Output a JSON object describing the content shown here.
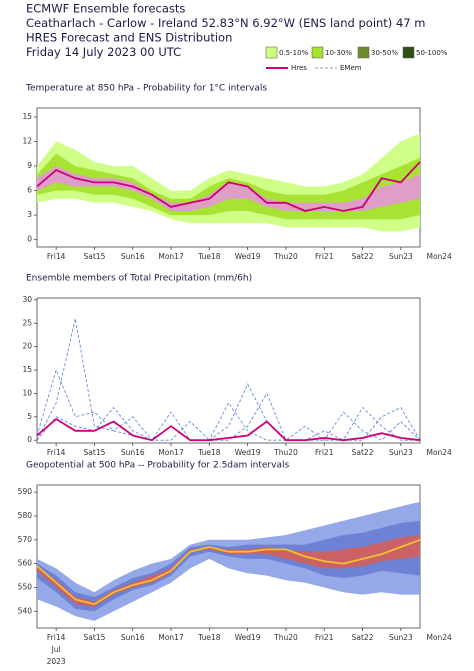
{
  "header": {
    "lines": [
      "ECMWF Ensemble forecasts",
      "Ceatharlach - Carlow - Ireland 52.83°N 6.92°W (ENS land point) 47 m",
      "HRES Forecast and ENS Distribution",
      "Friday 14 July 2023 00 UTC"
    ]
  },
  "legend": [
    {
      "name": "0.5-10%",
      "color": "#ccff80",
      "kind": "box"
    },
    {
      "name": "10-30%",
      "color": "#a5e22e",
      "kind": "box"
    },
    {
      "name": "30-50%",
      "color": "#6b8c2e",
      "kind": "box"
    },
    {
      "name": "50-100%",
      "color": "#2d5016",
      "kind": "box"
    },
    {
      "name": "Hres",
      "color": "#cc0077",
      "kind": "line"
    },
    {
      "name": "EMem",
      "color": "#999999",
      "kind": "dash"
    }
  ],
  "chart_data": [
    {
      "type": "line",
      "title": "Temperature at 850 hPa - Probability for 1°C intervals",
      "ylim": [
        -0.9,
        16.1
      ],
      "yticks": [
        0,
        3,
        6,
        9,
        12,
        15
      ],
      "x": [
        0,
        12,
        24,
        36,
        48,
        60,
        72,
        84,
        96,
        108,
        120,
        132,
        144,
        156,
        168,
        180,
        192,
        204,
        216,
        228,
        240
      ],
      "xticks": [
        {
          "value": 12,
          "label": "Fri14"
        },
        {
          "value": 36,
          "label": "Sat15"
        },
        {
          "value": 60,
          "label": "Sun16",
          "color": "#cc0000"
        },
        {
          "value": 84,
          "label": "Mon17"
        },
        {
          "value": 108,
          "label": "Tue18"
        },
        {
          "value": 132,
          "label": "Wed19"
        },
        {
          "value": 156,
          "label": "Thu20"
        },
        {
          "value": 180,
          "label": "Fri21"
        },
        {
          "value": 204,
          "label": "Sat22"
        },
        {
          "value": 228,
          "label": "Sun23",
          "color": "#cc0000"
        },
        {
          "value": 252,
          "label": "Mon24"
        }
      ],
      "series": [
        {
          "name": "0.5-10%",
          "color": "#ccff80",
          "low": [
            4.5,
            5,
            5,
            4.5,
            4.5,
            4,
            3.5,
            2.5,
            2,
            2,
            2,
            2,
            2,
            1.5,
            1.5,
            1.5,
            1.5,
            1.5,
            1,
            1,
            1.5
          ],
          "high": [
            9,
            12,
            11,
            9.5,
            9,
            9,
            7.5,
            6,
            6,
            7.5,
            8.5,
            8,
            7.5,
            7,
            6.5,
            6.5,
            7,
            8,
            10,
            12,
            13
          ]
        },
        {
          "name": "10-30%",
          "color": "#a5e22e",
          "low": [
            5.5,
            6,
            6,
            5.5,
            5.5,
            5,
            4,
            3,
            3,
            3,
            3.5,
            3.5,
            3,
            2.5,
            2.5,
            2.5,
            2.5,
            2.5,
            2.5,
            2.5,
            3
          ],
          "high": [
            8,
            10.5,
            9,
            8.5,
            8,
            7.5,
            6,
            5,
            5,
            6.5,
            7.5,
            7,
            6,
            5.5,
            5.5,
            5.5,
            6,
            7,
            8,
            9,
            10
          ]
        },
        {
          "name": "30-50%",
          "color": "#e09ad0",
          "low": [
            6,
            7,
            6.5,
            6.5,
            6.5,
            6,
            5,
            3.5,
            3.5,
            4,
            5,
            5,
            4,
            3.5,
            3.5,
            3.5,
            3.5,
            3.5,
            4,
            4.5,
            5
          ],
          "high": [
            7.5,
            9,
            8,
            7.5,
            7.5,
            7,
            5.5,
            4.5,
            4.5,
            5.5,
            7,
            6.5,
            5,
            4.5,
            4.5,
            4.5,
            4.5,
            5,
            6.5,
            7,
            8
          ]
        },
        {
          "name": "Hres",
          "color": "#cc0077",
          "values": [
            6.5,
            8.5,
            7.5,
            7,
            7,
            6.5,
            5.5,
            4,
            4.5,
            5,
            7,
            6.5,
            4.5,
            4.5,
            3.5,
            4,
            3.5,
            4,
            7.5,
            7,
            9.5
          ]
        }
      ]
    },
    {
      "type": "line",
      "title": "Ensemble members of Total Precipitation (mm/6h)",
      "ylim": [
        -0.6,
        30.4
      ],
      "yticks": [
        0,
        5,
        10,
        15,
        20,
        25,
        30
      ],
      "x": [
        0,
        12,
        24,
        36,
        48,
        60,
        72,
        84,
        96,
        108,
        120,
        132,
        144,
        156,
        168,
        180,
        192,
        204,
        216,
        228,
        240
      ],
      "xticks": [
        {
          "value": 12,
          "label": "Fri14"
        },
        {
          "value": 36,
          "label": "Sat15"
        },
        {
          "value": 60,
          "label": "Sun16",
          "color": "#cc0000"
        },
        {
          "value": 84,
          "label": "Mon17"
        },
        {
          "value": 108,
          "label": "Tue18"
        },
        {
          "value": 132,
          "label": "Wed19"
        },
        {
          "value": 156,
          "label": "Thu20"
        },
        {
          "value": 180,
          "label": "Fri21"
        },
        {
          "value": 204,
          "label": "Sat22"
        },
        {
          "value": 228,
          "label": "Sun23",
          "color": "#cc0000"
        },
        {
          "value": 252,
          "label": "Mon24"
        }
      ],
      "series": [
        {
          "name": "EMem",
          "color": "#4f7fd6",
          "members": [
            [
              0,
              8,
              26,
              3,
              2,
              5,
              0,
              0,
              4,
              0,
              0,
              3,
              10,
              0,
              0,
              0,
              0,
              7,
              3,
              0,
              0
            ],
            [
              1,
              15,
              5,
              6,
              2,
              1,
              0,
              3,
              0,
              0,
              8,
              2,
              0,
              0,
              0,
              2,
              0,
              0,
              5,
              7,
              0
            ],
            [
              0,
              5,
              3,
              2,
              7,
              2,
              0,
              6,
              0,
              0,
              3,
              12,
              4,
              0,
              3,
              0,
              6,
              2,
              0,
              4,
              0
            ]
          ]
        },
        {
          "name": "Hres",
          "color": "#cc0077",
          "values": [
            1,
            4.5,
            2,
            2,
            4,
            1,
            0,
            3,
            0,
            0,
            0.5,
            1,
            4,
            0,
            0,
            0.5,
            0,
            0.5,
            1.5,
            0.5,
            0
          ]
        }
      ]
    },
    {
      "type": "line",
      "title": "Geopotential at 500 hPa -- Probability for 2.5dam intervals",
      "ylim": [
        533,
        593
      ],
      "yticks": [
        540,
        550,
        560,
        570,
        580,
        590
      ],
      "x": [
        0,
        12,
        24,
        36,
        48,
        60,
        72,
        84,
        96,
        108,
        120,
        132,
        144,
        156,
        168,
        180,
        192,
        204,
        216,
        228,
        240
      ],
      "xticks": [
        {
          "value": 12,
          "label": "Fri14"
        },
        {
          "value": 36,
          "label": "Sat15"
        },
        {
          "value": 60,
          "label": "Sun16",
          "color": "#cc0000"
        },
        {
          "value": 84,
          "label": "Mon17"
        },
        {
          "value": 108,
          "label": "Tue18"
        },
        {
          "value": 132,
          "label": "Wed19"
        },
        {
          "value": 156,
          "label": "Thu20"
        },
        {
          "value": 180,
          "label": "Fri21"
        },
        {
          "value": 204,
          "label": "Sat22"
        },
        {
          "value": 228,
          "label": "Sun23",
          "color": "#cc0000"
        },
        {
          "value": 252,
          "label": "Mon24"
        }
      ],
      "date_labels": [
        "Jul",
        "2023"
      ],
      "series": [
        {
          "name": "0.5-10%",
          "color": "#8fa3e6",
          "low": [
            545,
            542,
            538,
            536,
            540,
            544,
            548,
            552,
            558,
            562,
            558,
            556,
            555,
            553,
            552,
            550,
            548,
            547,
            548,
            547,
            547
          ],
          "high": [
            562,
            558,
            552,
            548,
            553,
            557,
            560,
            562,
            568,
            570,
            570,
            570,
            571,
            572,
            574,
            576,
            578,
            580,
            582,
            584,
            586
          ]
        },
        {
          "name": "10-30%",
          "color": "#6a7fd4",
          "low": [
            554,
            548,
            541,
            540,
            545,
            549,
            551,
            555,
            563,
            565,
            563,
            562,
            562,
            560,
            558,
            555,
            554,
            555,
            557,
            556,
            555
          ],
          "high": [
            560,
            555,
            548,
            546,
            550,
            554,
            556,
            560,
            567,
            568,
            567,
            568,
            568,
            568,
            568,
            570,
            572,
            573,
            575,
            577,
            578
          ]
        },
        {
          "name": "30-50%",
          "color": "#d06060",
          "low": [
            557,
            550,
            543,
            542,
            547,
            550,
            552,
            556,
            565,
            566,
            564,
            564,
            564,
            562,
            560,
            558,
            558,
            559,
            561,
            562,
            563
          ],
          "high": [
            559,
            553,
            546,
            544,
            549,
            552,
            555,
            558,
            566,
            567,
            566,
            566,
            567,
            566,
            565,
            565,
            566,
            567,
            569,
            571,
            572
          ]
        },
        {
          "name": "Hres",
          "color": "#f0c030",
          "values": [
            559,
            552,
            545,
            543,
            548,
            551,
            553,
            557,
            565,
            567,
            565,
            565,
            566,
            566,
            563,
            561,
            560,
            562,
            564,
            567,
            570
          ]
        }
      ]
    }
  ]
}
